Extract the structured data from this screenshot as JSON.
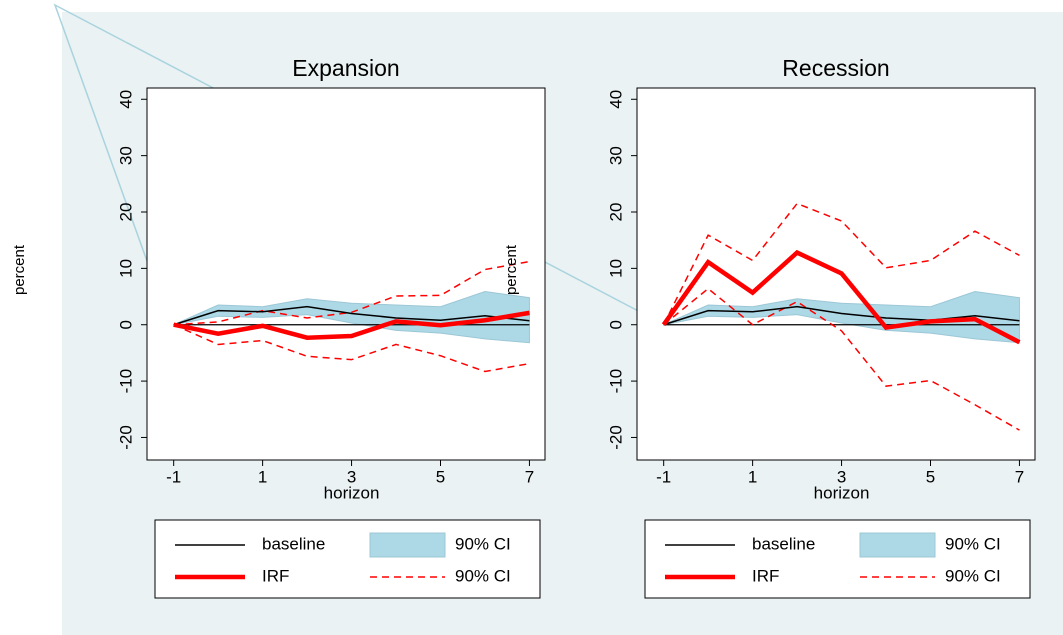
{
  "chart_data": [
    {
      "type": "line",
      "title": "Expansion",
      "x_label": "horizon",
      "y_label": "percent",
      "x": [
        -1,
        0,
        1,
        2,
        3,
        4,
        5,
        6,
        7
      ],
      "xlim": [
        -1.6,
        7.35
      ],
      "ylim": [
        -24,
        42
      ],
      "xticks": [
        -1,
        1,
        3,
        5,
        7
      ],
      "yticks": [
        -20,
        -10,
        0,
        10,
        20,
        30,
        40
      ],
      "yline": 0,
      "series": [
        {
          "name": "baseline",
          "color": "#000000",
          "values": [
            0,
            2.5,
            2.3,
            3.2,
            2.0,
            1.2,
            0.8,
            1.6,
            0.7
          ]
        },
        {
          "name": "IRF",
          "color": "#ff0000",
          "values": [
            0,
            -1.6,
            -0.2,
            -2.3,
            -2.0,
            0.6,
            -0.1,
            0.8,
            2.1
          ]
        }
      ],
      "band": {
        "name": "90% CI",
        "color": "#add8e6",
        "upper": [
          0,
          3.5,
          3.2,
          4.6,
          3.8,
          3.5,
          3.2,
          5.9,
          4.8
        ],
        "lower": [
          0,
          1.5,
          1.3,
          1.8,
          0.3,
          -1.0,
          -1.5,
          -2.5,
          -3.2
        ]
      },
      "dashed": {
        "name": "90% CI",
        "color": "#ff0000",
        "upper": [
          0,
          0.5,
          2.5,
          1.2,
          2.2,
          5.1,
          5.2,
          9.8,
          11.2
        ],
        "lower": [
          0,
          -3.5,
          -2.8,
          -5.6,
          -6.2,
          -3.5,
          -5.5,
          -8.3,
          -6.9
        ]
      }
    },
    {
      "type": "line",
      "title": "Recession",
      "x_label": "horizon",
      "y_label": "percent",
      "x": [
        -1,
        0,
        1,
        2,
        3,
        4,
        5,
        6,
        7
      ],
      "xlim": [
        -1.6,
        7.35
      ],
      "ylim": [
        -24,
        42
      ],
      "xticks": [
        -1,
        1,
        3,
        5,
        7
      ],
      "yticks": [
        -20,
        -10,
        0,
        10,
        20,
        30,
        40
      ],
      "yline": 0,
      "series": [
        {
          "name": "baseline",
          "color": "#000000",
          "values": [
            0,
            2.5,
            2.3,
            3.2,
            2.0,
            1.2,
            0.8,
            1.6,
            0.7
          ]
        },
        {
          "name": "IRF",
          "color": "#ff0000",
          "values": [
            0,
            11.1,
            5.7,
            12.8,
            9.1,
            -0.5,
            0.6,
            1.0,
            -3.1
          ]
        }
      ],
      "band": {
        "name": "90% CI",
        "color": "#add8e6",
        "upper": [
          0,
          3.5,
          3.2,
          4.6,
          3.8,
          3.5,
          3.2,
          5.9,
          4.8
        ],
        "lower": [
          0,
          1.5,
          1.3,
          1.8,
          0.3,
          -1.0,
          -1.5,
          -2.5,
          -3.2
        ]
      },
      "dashed": {
        "name": "90% CI",
        "color": "#ff0000",
        "upper": [
          0,
          15.9,
          11.4,
          21.5,
          18.4,
          10.1,
          11.4,
          16.6,
          12.3
        ],
        "lower": [
          0,
          6.4,
          0,
          4.1,
          -1.1,
          -10.9,
          -9.9,
          -14.2,
          -18.7
        ]
      }
    }
  ]
}
